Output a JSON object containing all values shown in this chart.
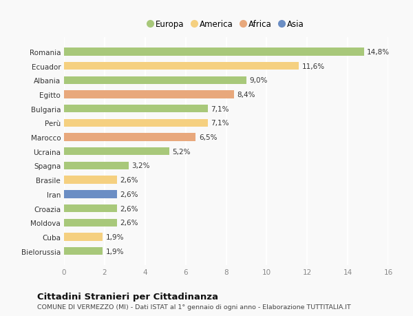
{
  "countries": [
    "Romania",
    "Ecuador",
    "Albania",
    "Egitto",
    "Bulgaria",
    "Perù",
    "Marocco",
    "Ucraina",
    "Spagna",
    "Brasile",
    "Iran",
    "Croazia",
    "Moldova",
    "Cuba",
    "Bielorussia"
  ],
  "values": [
    14.8,
    11.6,
    9.0,
    8.4,
    7.1,
    7.1,
    6.5,
    5.2,
    3.2,
    2.6,
    2.6,
    2.6,
    2.6,
    1.9,
    1.9
  ],
  "labels": [
    "14,8%",
    "11,6%",
    "9,0%",
    "8,4%",
    "7,1%",
    "7,1%",
    "6,5%",
    "5,2%",
    "3,2%",
    "2,6%",
    "2,6%",
    "2,6%",
    "2,6%",
    "1,9%",
    "1,9%"
  ],
  "continents": [
    "Europa",
    "America",
    "Europa",
    "Africa",
    "Europa",
    "America",
    "Africa",
    "Europa",
    "Europa",
    "America",
    "Asia",
    "Europa",
    "Europa",
    "America",
    "Europa"
  ],
  "colors": {
    "Europa": "#a8c87a",
    "America": "#f5d080",
    "Africa": "#e8a87c",
    "Asia": "#6b8ec4"
  },
  "legend_order": [
    "Europa",
    "America",
    "Africa",
    "Asia"
  ],
  "xlim": [
    0,
    16
  ],
  "xticks": [
    0,
    2,
    4,
    6,
    8,
    10,
    12,
    14,
    16
  ],
  "title": "Cittadini Stranieri per Cittadinanza",
  "subtitle": "COMUNE DI VERMEZZO (MI) - Dati ISTAT al 1° gennaio di ogni anno - Elaborazione TUTTITALIA.IT",
  "background_color": "#f9f9f9",
  "grid_color": "#ffffff",
  "bar_height": 0.55
}
